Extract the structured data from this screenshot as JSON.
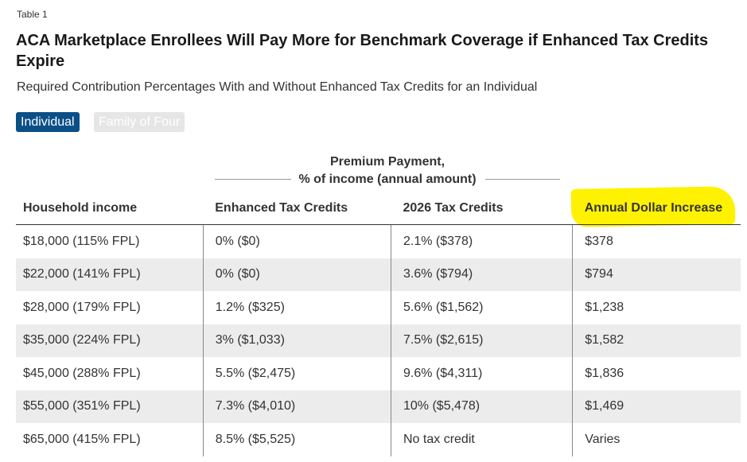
{
  "table_label": "Table 1",
  "title": "ACA Marketplace Enrollees Will Pay More for Benchmark Coverage if Enhanced Tax Credits Expire",
  "subtitle": "Required Contribution Percentages With and Without Enhanced Tax Credits for an Individual",
  "toggles": {
    "individual": "Individual",
    "family": "Family of Four"
  },
  "colors": {
    "active_toggle": "#0b4f87",
    "highlight": "#fff200",
    "stripe": "#ececec"
  },
  "chart_data": {
    "type": "table",
    "group_header_line1": "Premium Payment,",
    "group_header_line2": "% of income (annual amount)",
    "columns": [
      "Household income",
      "Enhanced Tax Credits",
      "2026 Tax Credits",
      "Annual Dollar Increase"
    ],
    "rows": [
      [
        "$18,000 (115% FPL)",
        "0% ($0)",
        "2.1% ($378)",
        "$378"
      ],
      [
        "$22,000 (141% FPL)",
        "0% ($0)",
        "3.6% ($794)",
        "$794"
      ],
      [
        "$28,000 (179% FPL)",
        "1.2% ($325)",
        "5.6% ($1,562)",
        "$1,238"
      ],
      [
        "$35,000 (224% FPL)",
        "3% ($1,033)",
        "7.5% ($2,615)",
        "$1,582"
      ],
      [
        "$45,000 (288% FPL)",
        "5.5% ($2,475)",
        "9.6% ($4,311)",
        "$1,836"
      ],
      [
        "$55,000 (351% FPL)",
        "7.3% ($4,010)",
        "10% ($5,478)",
        "$1,469"
      ],
      [
        "$65,000 (415% FPL)",
        "8.5% ($5,525)",
        "No tax credit",
        "Varies"
      ]
    ]
  }
}
